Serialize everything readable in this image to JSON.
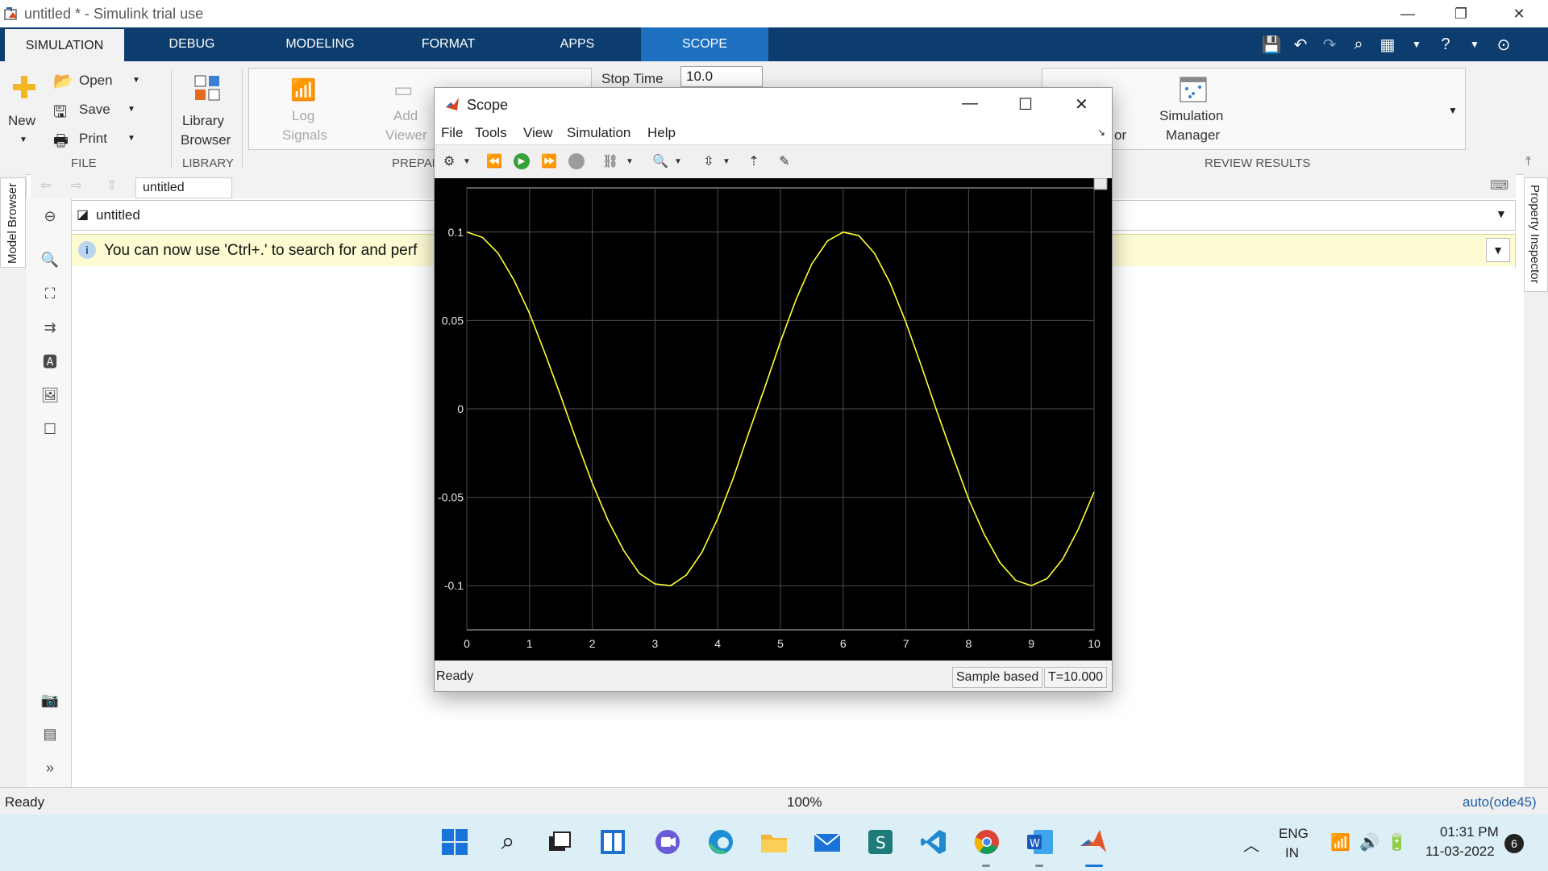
{
  "window": {
    "title": "untitled * - Simulink trial use",
    "controls": {
      "minimize": "—",
      "restore": "❐",
      "close": "✕"
    }
  },
  "tabs": [
    {
      "label": "SIMULATION"
    },
    {
      "label": "DEBUG"
    },
    {
      "label": "MODELING"
    },
    {
      "label": "FORMAT"
    },
    {
      "label": "APPS"
    },
    {
      "label": "SCOPE"
    }
  ],
  "ribbon": {
    "file": {
      "new": "New",
      "open": "Open",
      "save": "Save",
      "print": "Print",
      "group": "FILE"
    },
    "library": {
      "label1": "Library",
      "label2": "Browser",
      "group": "LIBRARY"
    },
    "prepare": {
      "log1": "Log",
      "log2": "Signals",
      "add1": "Add",
      "add2": "Viewer",
      "group": "PREPAR"
    },
    "simulate": {
      "stop_time_label": "Stop Time",
      "stop_time_value": "10.0"
    },
    "review": {
      "partial": "or",
      "sim1": "Simulation",
      "sim2": "Manager",
      "group": "REVIEW RESULTS"
    }
  },
  "nav": {
    "breadcrumb": "untitled",
    "address": "untitled"
  },
  "info": {
    "message": "You can now use 'Ctrl+.' to search for and perf"
  },
  "docks": {
    "left": "Model Browser",
    "right": "Property Inspector"
  },
  "status": {
    "left": "Ready",
    "zoom": "100%",
    "solver": "auto(ode45)"
  },
  "scope": {
    "title": "Scope",
    "menus": [
      "File",
      "Tools",
      "View",
      "Simulation",
      "Help"
    ],
    "status": {
      "left": "Ready",
      "mode": "Sample based",
      "time": "T=10.000"
    },
    "trace_color": "#ffff33"
  },
  "chart_data": {
    "type": "line",
    "title": "",
    "xlabel": "",
    "ylabel": "",
    "xlim": [
      0,
      10
    ],
    "ylim": [
      -0.125,
      0.125
    ],
    "xticks": [
      "0",
      "1",
      "2",
      "3",
      "4",
      "5",
      "6",
      "7",
      "8",
      "9",
      "10"
    ],
    "yticks": [
      {
        "v": 0.1,
        "label": "0.1"
      },
      {
        "v": 0.05,
        "label": "0.05"
      },
      {
        "v": 0,
        "label": "0"
      },
      {
        "v": -0.05,
        "label": "-0.05"
      },
      {
        "v": -0.1,
        "label": "-0.1"
      }
    ],
    "grid": true,
    "series": [
      {
        "values_desc": "",
        "x": [
          0,
          0.25,
          0.5,
          0.75,
          1,
          1.25,
          1.5,
          1.75,
          2,
          2.25,
          2.5,
          2.75,
          3,
          3.25,
          3.5,
          3.75,
          4,
          4.25,
          4.5,
          4.75,
          5,
          5.25,
          5.5,
          5.75,
          6,
          6.25,
          6.5,
          6.75,
          7,
          7.25,
          7.5,
          7.75,
          8,
          8.25,
          8.5,
          8.75,
          9,
          9.25,
          9.5,
          9.75,
          10
        ],
        "y": [
          0.1,
          0.097,
          0.088,
          0.073,
          0.054,
          0.031,
          0.007,
          -0.018,
          -0.042,
          -0.063,
          -0.08,
          -0.093,
          -0.099,
          -0.1,
          -0.094,
          -0.081,
          -0.062,
          -0.039,
          -0.013,
          0.012,
          0.038,
          0.062,
          0.082,
          0.095,
          0.1,
          0.098,
          0.088,
          0.071,
          0.049,
          0.024,
          -0.002,
          -0.027,
          -0.051,
          -0.071,
          -0.087,
          -0.097,
          -0.1,
          -0.096,
          -0.085,
          -0.068,
          -0.047
        ]
      }
    ]
  },
  "taskbar": {
    "lang1": "ENG",
    "lang2": "IN",
    "time": "01:31 PM",
    "date": "11-03-2022",
    "notif": "6"
  }
}
